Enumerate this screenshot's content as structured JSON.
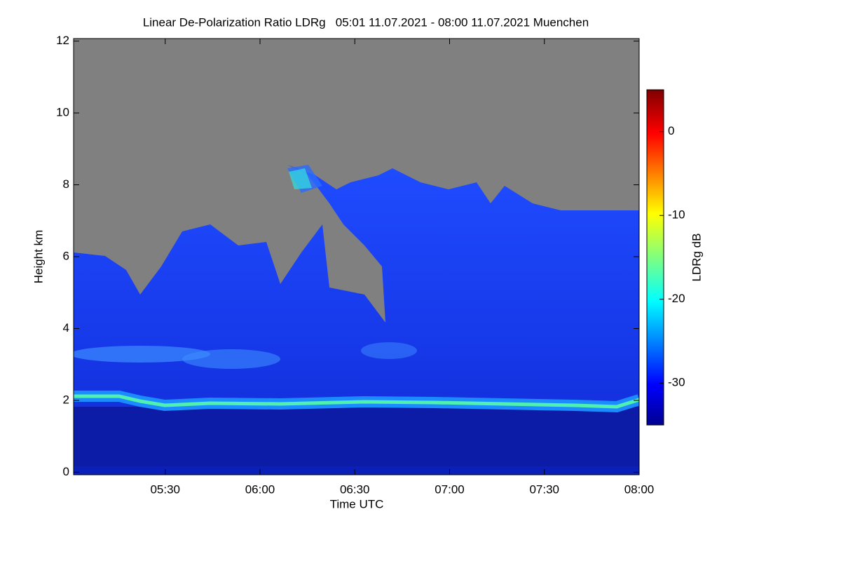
{
  "chart_data": {
    "type": "heatmap",
    "title": "Linear De-Polarization Ratio LDRg   05:01 11.07.2021 - 08:00 11.07.2021 Muenchen",
    "x_label": "Time UTC",
    "y_label": "Height km",
    "xlim": [
      301,
      480
    ],
    "xticks": [
      {
        "value": 330,
        "label": "05:30"
      },
      {
        "value": 360,
        "label": "06:00"
      },
      {
        "value": 390,
        "label": "06:30"
      },
      {
        "value": 420,
        "label": "07:00"
      },
      {
        "value": 450,
        "label": "07:30"
      },
      {
        "value": 480,
        "label": "08:00"
      }
    ],
    "ylim": [
      -0.07,
      12.07
    ],
    "yticks": [
      0,
      2,
      4,
      6,
      8,
      10,
      12
    ],
    "colorbar": {
      "label": "LDRg dB",
      "lim": [
        -35,
        5
      ],
      "ticks": [
        0,
        -10,
        -20,
        -30
      ],
      "colormap": "jet"
    }
  }
}
